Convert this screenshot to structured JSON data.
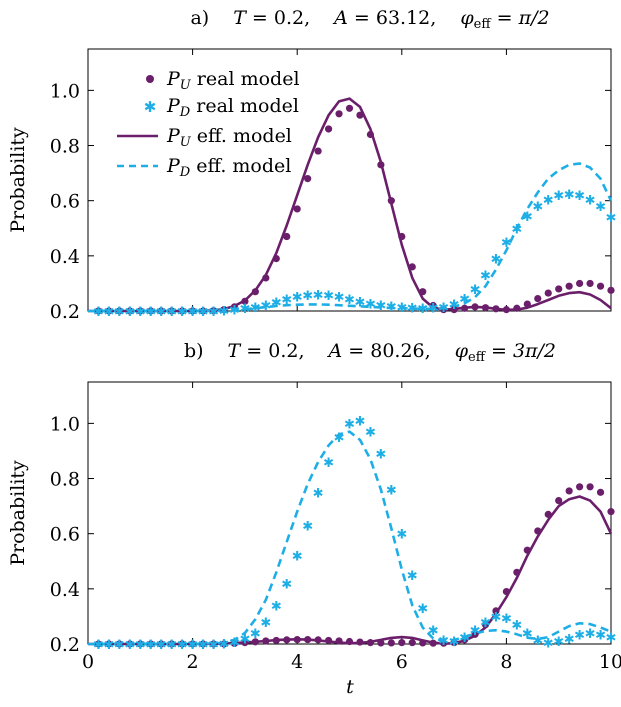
{
  "colors": {
    "U": "#6b1f6b",
    "D": "#1eaee6"
  },
  "chart_data": [
    {
      "type": "line",
      "title": "a)    T = 0.2,    A = 63.12,    φ_eff = π/2",
      "title_parts": {
        "label": "a)",
        "T": "0.2",
        "A": "63.12",
        "phi": "π/2"
      },
      "xlabel": "",
      "ylabel": "Probability",
      "xlim": [
        0,
        10
      ],
      "ylim": [
        0.2,
        1.15
      ],
      "yticks": [
        0.2,
        0.4,
        0.6,
        0.8,
        1.0
      ],
      "ytick_labels": [
        "0.2",
        "0.4",
        "0.6",
        "0.8",
        "1.0"
      ],
      "xtick_labels": [],
      "legend_placement": "top-left",
      "series": [
        {
          "name": "P_U real model",
          "style": "dots",
          "color_key": "U",
          "x": [
            0.2,
            0.4,
            0.6,
            0.8,
            1.0,
            1.2,
            1.4,
            1.6,
            1.8,
            2.0,
            2.2,
            2.4,
            2.6,
            2.8,
            3.0,
            3.2,
            3.4,
            3.6,
            3.8,
            4.0,
            4.2,
            4.4,
            4.6,
            4.8,
            5.0,
            5.2,
            5.4,
            5.6,
            5.8,
            6.0,
            6.2,
            6.4,
            6.6,
            6.8,
            7.0,
            7.2,
            7.4,
            7.6,
            7.8,
            8.0,
            8.2,
            8.4,
            8.6,
            8.8,
            9.0,
            9.2,
            9.4,
            9.6,
            9.8,
            10.0
          ],
          "y": [
            0.2,
            0.2,
            0.2,
            0.2,
            0.2,
            0.2,
            0.2,
            0.2,
            0.2,
            0.2,
            0.2,
            0.201,
            0.205,
            0.215,
            0.235,
            0.27,
            0.32,
            0.39,
            0.47,
            0.57,
            0.68,
            0.78,
            0.86,
            0.915,
            0.935,
            0.91,
            0.84,
            0.73,
            0.6,
            0.47,
            0.36,
            0.27,
            0.22,
            0.205,
            0.205,
            0.21,
            0.215,
            0.212,
            0.208,
            0.205,
            0.21,
            0.225,
            0.245,
            0.265,
            0.28,
            0.29,
            0.3,
            0.3,
            0.29,
            0.275
          ]
        },
        {
          "name": "P_D real model",
          "style": "stars",
          "color_key": "D",
          "x": [
            0.2,
            0.4,
            0.6,
            0.8,
            1.0,
            1.2,
            1.4,
            1.6,
            1.8,
            2.0,
            2.2,
            2.4,
            2.6,
            2.8,
            3.0,
            3.2,
            3.4,
            3.6,
            3.8,
            4.0,
            4.2,
            4.4,
            4.6,
            4.8,
            5.0,
            5.2,
            5.4,
            5.6,
            5.8,
            6.0,
            6.2,
            6.4,
            6.6,
            6.8,
            7.0,
            7.2,
            7.4,
            7.6,
            7.8,
            8.0,
            8.2,
            8.4,
            8.6,
            8.8,
            9.0,
            9.2,
            9.4,
            9.6,
            9.8,
            10.0
          ],
          "y": [
            0.2,
            0.2,
            0.2,
            0.2,
            0.2,
            0.2,
            0.2,
            0.2,
            0.2,
            0.2,
            0.2,
            0.2,
            0.202,
            0.205,
            0.21,
            0.215,
            0.222,
            0.232,
            0.243,
            0.252,
            0.258,
            0.26,
            0.258,
            0.252,
            0.243,
            0.235,
            0.228,
            0.222,
            0.218,
            0.215,
            0.212,
            0.21,
            0.212,
            0.215,
            0.225,
            0.245,
            0.28,
            0.33,
            0.39,
            0.45,
            0.5,
            0.545,
            0.58,
            0.605,
            0.62,
            0.625,
            0.62,
            0.605,
            0.58,
            0.54
          ]
        },
        {
          "name": "P_U eff. model",
          "style": "solid",
          "color_key": "U",
          "x": [
            0,
            0.5,
            1.0,
            1.5,
            2.0,
            2.4,
            2.6,
            2.8,
            3.0,
            3.2,
            3.4,
            3.6,
            3.8,
            4.0,
            4.2,
            4.4,
            4.6,
            4.8,
            5.0,
            5.2,
            5.4,
            5.6,
            5.8,
            6.0,
            6.2,
            6.4,
            6.6,
            6.8,
            7.0,
            7.2,
            7.4,
            7.6,
            7.8,
            8.0,
            8.2,
            8.4,
            8.6,
            8.8,
            9.0,
            9.2,
            9.4,
            9.6,
            9.8,
            10.0
          ],
          "y": [
            0.2,
            0.2,
            0.2,
            0.2,
            0.2,
            0.202,
            0.207,
            0.218,
            0.238,
            0.275,
            0.33,
            0.41,
            0.51,
            0.62,
            0.73,
            0.83,
            0.91,
            0.96,
            0.97,
            0.94,
            0.86,
            0.74,
            0.59,
            0.44,
            0.32,
            0.245,
            0.212,
            0.205,
            0.207,
            0.212,
            0.215,
            0.213,
            0.208,
            0.204,
            0.205,
            0.212,
            0.225,
            0.24,
            0.255,
            0.265,
            0.268,
            0.26,
            0.24,
            0.21
          ]
        },
        {
          "name": "P_D eff. model",
          "style": "dashed",
          "color_key": "D",
          "x": [
            0,
            0.5,
            1.0,
            1.5,
            2.0,
            2.4,
            2.6,
            2.8,
            3.0,
            3.2,
            3.4,
            3.6,
            3.8,
            4.0,
            4.2,
            4.4,
            4.6,
            4.8,
            5.0,
            5.2,
            5.4,
            5.6,
            5.8,
            6.0,
            6.2,
            6.4,
            6.6,
            6.8,
            7.0,
            7.2,
            7.4,
            7.6,
            7.8,
            8.0,
            8.2,
            8.4,
            8.6,
            8.8,
            9.0,
            9.2,
            9.4,
            9.6,
            9.8,
            10.0
          ],
          "y": [
            0.2,
            0.2,
            0.2,
            0.2,
            0.2,
            0.2,
            0.201,
            0.203,
            0.206,
            0.21,
            0.214,
            0.218,
            0.221,
            0.223,
            0.224,
            0.224,
            0.223,
            0.221,
            0.219,
            0.217,
            0.215,
            0.213,
            0.211,
            0.21,
            0.209,
            0.208,
            0.208,
            0.21,
            0.215,
            0.228,
            0.25,
            0.29,
            0.35,
            0.42,
            0.5,
            0.57,
            0.63,
            0.68,
            0.71,
            0.73,
            0.735,
            0.72,
            0.68,
            0.6
          ]
        }
      ]
    },
    {
      "type": "line",
      "title": "b)    T = 0.2,    A = 80.26,    φ_eff = 3π/2",
      "title_parts": {
        "label": "b)",
        "T": "0.2",
        "A": "80.26",
        "phi": "3π/2"
      },
      "xlabel": "t",
      "ylabel": "Probability",
      "xlim": [
        0,
        10
      ],
      "ylim": [
        0.2,
        1.15
      ],
      "yticks": [
        0.2,
        0.4,
        0.6,
        0.8,
        1.0
      ],
      "ytick_labels": [
        "0.2",
        "0.4",
        "0.6",
        "0.8",
        "1.0"
      ],
      "xticks": [
        0,
        2,
        4,
        6,
        8,
        10
      ],
      "xtick_labels": [
        "0",
        "2",
        "4",
        "6",
        "8",
        "10"
      ],
      "series": [
        {
          "name": "P_U real model",
          "style": "dots",
          "color_key": "U",
          "x": [
            0.2,
            0.4,
            0.6,
            0.8,
            1.0,
            1.2,
            1.4,
            1.6,
            1.8,
            2.0,
            2.2,
            2.4,
            2.6,
            2.8,
            3.0,
            3.2,
            3.4,
            3.6,
            3.8,
            4.0,
            4.2,
            4.4,
            4.6,
            4.8,
            5.0,
            5.2,
            5.4,
            5.6,
            5.8,
            6.0,
            6.2,
            6.4,
            6.6,
            6.8,
            7.0,
            7.2,
            7.4,
            7.6,
            7.8,
            8.0,
            8.2,
            8.4,
            8.6,
            8.8,
            9.0,
            9.2,
            9.4,
            9.6,
            9.8,
            10.0
          ],
          "y": [
            0.2,
            0.2,
            0.2,
            0.2,
            0.2,
            0.2,
            0.2,
            0.2,
            0.2,
            0.2,
            0.2,
            0.2,
            0.2,
            0.202,
            0.205,
            0.208,
            0.211,
            0.213,
            0.215,
            0.216,
            0.216,
            0.215,
            0.213,
            0.211,
            0.209,
            0.207,
            0.205,
            0.204,
            0.204,
            0.205,
            0.205,
            0.204,
            0.203,
            0.203,
            0.205,
            0.215,
            0.235,
            0.27,
            0.32,
            0.39,
            0.46,
            0.54,
            0.61,
            0.67,
            0.72,
            0.755,
            0.77,
            0.77,
            0.75,
            0.68
          ]
        },
        {
          "name": "P_D real model",
          "style": "stars",
          "color_key": "D",
          "x": [
            0.2,
            0.4,
            0.6,
            0.8,
            1.0,
            1.2,
            1.4,
            1.6,
            1.8,
            2.0,
            2.2,
            2.4,
            2.6,
            2.8,
            3.0,
            3.2,
            3.4,
            3.6,
            3.8,
            4.0,
            4.2,
            4.4,
            4.6,
            4.8,
            5.0,
            5.2,
            5.4,
            5.6,
            5.8,
            6.0,
            6.2,
            6.4,
            6.6,
            6.8,
            7.0,
            7.2,
            7.4,
            7.6,
            7.8,
            8.0,
            8.2,
            8.4,
            8.6,
            8.8,
            9.0,
            9.2,
            9.4,
            9.6,
            9.8,
            10.0
          ],
          "y": [
            0.2,
            0.2,
            0.2,
            0.2,
            0.2,
            0.2,
            0.2,
            0.2,
            0.2,
            0.2,
            0.2,
            0.2,
            0.202,
            0.208,
            0.22,
            0.24,
            0.28,
            0.34,
            0.42,
            0.52,
            0.63,
            0.75,
            0.86,
            0.95,
            1.0,
            1.01,
            0.97,
            0.89,
            0.76,
            0.6,
            0.45,
            0.33,
            0.25,
            0.215,
            0.21,
            0.225,
            0.25,
            0.28,
            0.3,
            0.295,
            0.27,
            0.24,
            0.215,
            0.205,
            0.21,
            0.22,
            0.235,
            0.24,
            0.235,
            0.225
          ]
        },
        {
          "name": "P_U eff. model",
          "style": "solid",
          "color_key": "U",
          "x": [
            0,
            0.5,
            1.0,
            1.5,
            2.0,
            2.5,
            3.0,
            3.2,
            3.4,
            3.6,
            3.8,
            4.0,
            4.2,
            4.4,
            4.6,
            4.8,
            5.0,
            5.2,
            5.4,
            5.6,
            5.8,
            6.0,
            6.2,
            6.4,
            6.6,
            6.8,
            7.0,
            7.2,
            7.4,
            7.6,
            7.8,
            8.0,
            8.2,
            8.4,
            8.6,
            8.8,
            9.0,
            9.2,
            9.4,
            9.6,
            9.8,
            10.0
          ],
          "y": [
            0.2,
            0.2,
            0.2,
            0.2,
            0.2,
            0.201,
            0.205,
            0.208,
            0.211,
            0.214,
            0.216,
            0.217,
            0.216,
            0.213,
            0.209,
            0.205,
            0.203,
            0.204,
            0.208,
            0.215,
            0.222,
            0.225,
            0.222,
            0.213,
            0.205,
            0.201,
            0.203,
            0.212,
            0.23,
            0.26,
            0.31,
            0.37,
            0.44,
            0.52,
            0.59,
            0.65,
            0.7,
            0.725,
            0.735,
            0.72,
            0.68,
            0.6
          ]
        },
        {
          "name": "P_D eff. model",
          "style": "dashed",
          "color_key": "D",
          "x": [
            0,
            0.5,
            1.0,
            1.5,
            2.0,
            2.5,
            2.8,
            3.0,
            3.2,
            3.4,
            3.6,
            3.8,
            4.0,
            4.2,
            4.4,
            4.6,
            4.8,
            5.0,
            5.2,
            5.4,
            5.6,
            5.8,
            6.0,
            6.2,
            6.4,
            6.6,
            6.8,
            7.0,
            7.2,
            7.4,
            7.6,
            7.8,
            8.0,
            8.2,
            8.4,
            8.6,
            8.8,
            9.0,
            9.2,
            9.4,
            9.6,
            9.8,
            10.0
          ],
          "y": [
            0.2,
            0.2,
            0.2,
            0.2,
            0.2,
            0.203,
            0.215,
            0.24,
            0.29,
            0.36,
            0.46,
            0.57,
            0.68,
            0.78,
            0.86,
            0.92,
            0.96,
            0.97,
            0.94,
            0.87,
            0.76,
            0.62,
            0.47,
            0.34,
            0.26,
            0.22,
            0.212,
            0.215,
            0.225,
            0.238,
            0.247,
            0.25,
            0.245,
            0.235,
            0.223,
            0.218,
            0.225,
            0.245,
            0.265,
            0.275,
            0.272,
            0.26,
            0.245
          ]
        }
      ]
    }
  ]
}
